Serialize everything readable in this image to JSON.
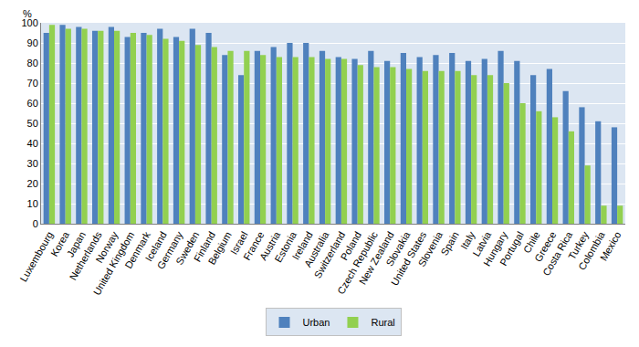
{
  "chart_data": {
    "type": "bar",
    "y_label": "%",
    "categories": [
      "Luxembourg",
      "Korea",
      "Japan",
      "Netherlands",
      "Norway",
      "United Kingdom",
      "Denmark",
      "Iceland",
      "Germany",
      "Sweden",
      "Finland",
      "Belgium",
      "Israel",
      "France",
      "Austria",
      "Estonia",
      "Ireland",
      "Australia",
      "Switzerland",
      "Poland",
      "Czech Republic",
      "New Zealand",
      "Slovakia",
      "United States",
      "Slovenia",
      "Spain",
      "Italy",
      "Latvia",
      "Hungary",
      "Portugal",
      "Chile",
      "Greece",
      "Costa Rica",
      "Turkey",
      "Colombia",
      "Mexico"
    ],
    "series": [
      {
        "name": "Urban",
        "color": "#4f81bd",
        "values": [
          95,
          99,
          98,
          96,
          98,
          93,
          95,
          97,
          93,
          97,
          95,
          84,
          74,
          86,
          88,
          90,
          90,
          86,
          83,
          82,
          86,
          81,
          85,
          83,
          84,
          85,
          81,
          82,
          86,
          81,
          74,
          77,
          66,
          58,
          51,
          48
        ]
      },
      {
        "name": "Rural",
        "color": "#92d050",
        "values": [
          99,
          97,
          97,
          96,
          96,
          95,
          94,
          92,
          91,
          89,
          88,
          86,
          86,
          84,
          83,
          83,
          83,
          82,
          82,
          79,
          78,
          78,
          77,
          76,
          76,
          76,
          74,
          74,
          70,
          60,
          56,
          53,
          46,
          29,
          9,
          9
        ]
      }
    ],
    "ylim": [
      0,
      100
    ],
    "yticks": [
      0,
      10,
      20,
      30,
      40,
      50,
      60,
      70,
      80,
      90,
      100
    ],
    "grid": true,
    "legend": "bottom"
  }
}
